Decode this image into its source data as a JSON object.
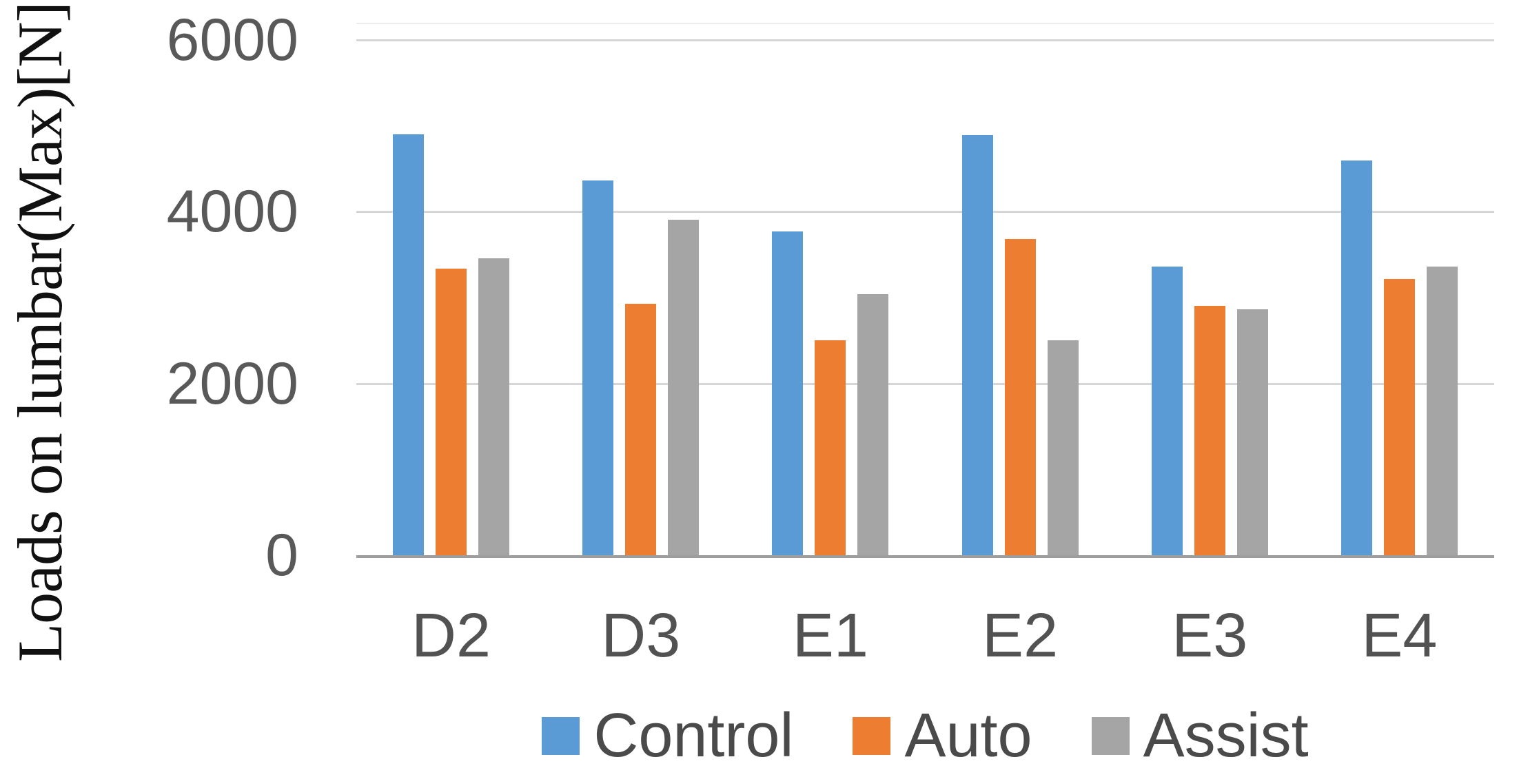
{
  "figure": {
    "background": "#FFFFFF"
  },
  "chart_data": {
    "type": "bar",
    "title": "",
    "xlabel": "",
    "ylabel": "Loads on lumbar(Max)[N]",
    "categories": [
      "D2",
      "D3",
      "E1",
      "E2",
      "E3",
      "E4"
    ],
    "series": [
      {
        "name": "Control",
        "color": "#5B9BD5",
        "values": [
          4900,
          4360,
          3770,
          4890,
          3360,
          4600
        ]
      },
      {
        "name": "Auto",
        "color": "#ED7D31",
        "values": [
          3340,
          2930,
          2500,
          3680,
          2900,
          3220
        ]
      },
      {
        "name": "Assist",
        "color": "#A5A5A5",
        "values": [
          3460,
          3910,
          3040,
          2500,
          2860,
          3360
        ]
      }
    ],
    "ylim": [
      0,
      6000
    ],
    "yticks": [
      0,
      2000,
      4000,
      6000
    ],
    "grid": true,
    "legend_position": "bottom",
    "colors": {
      "gridline": "#D6D6D6",
      "axis_line": "#9E9E9E",
      "tick_label": "#595959",
      "category_label": "#525252",
      "legend_label": "#4A4A4A",
      "ylabel_color": "#111111",
      "background": "#FFFFFF"
    }
  }
}
